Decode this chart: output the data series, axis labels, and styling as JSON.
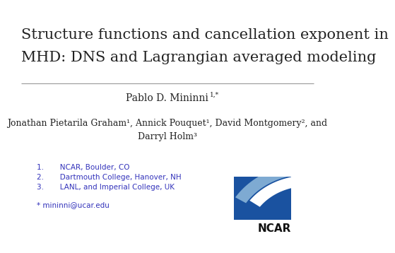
{
  "title_line1": "Structure functions and cancellation exponent in",
  "title_line2": "MHD: DNS and Lagrangian averaged modeling",
  "title_fontsize": 15,
  "author_main": "Pablo D. Mininni",
  "author_main_super": "1,*",
  "author_main_fontsize": 10,
  "author_others_line1": "Jonathan Pietarila Graham¹, Annick Pouquet¹, David Montgomery², and",
  "author_others_line2": "Darryl Holm³",
  "author_others_fontsize": 9,
  "affiliations": [
    "1.       NCAR, Boulder, CO",
    "2.       Dartmouth College, Hanover, NH",
    "3.       LANL, and Imperial College, UK"
  ],
  "affiliation_color": "#3333bb",
  "affiliation_fontsize": 7.5,
  "email": "* mininni@ucar.edu",
  "email_color": "#3333bb",
  "email_fontsize": 7.5,
  "ncar_text": "NCAR",
  "ncar_fontsize": 11,
  "text_color": "#222222",
  "line_color": "#999999"
}
